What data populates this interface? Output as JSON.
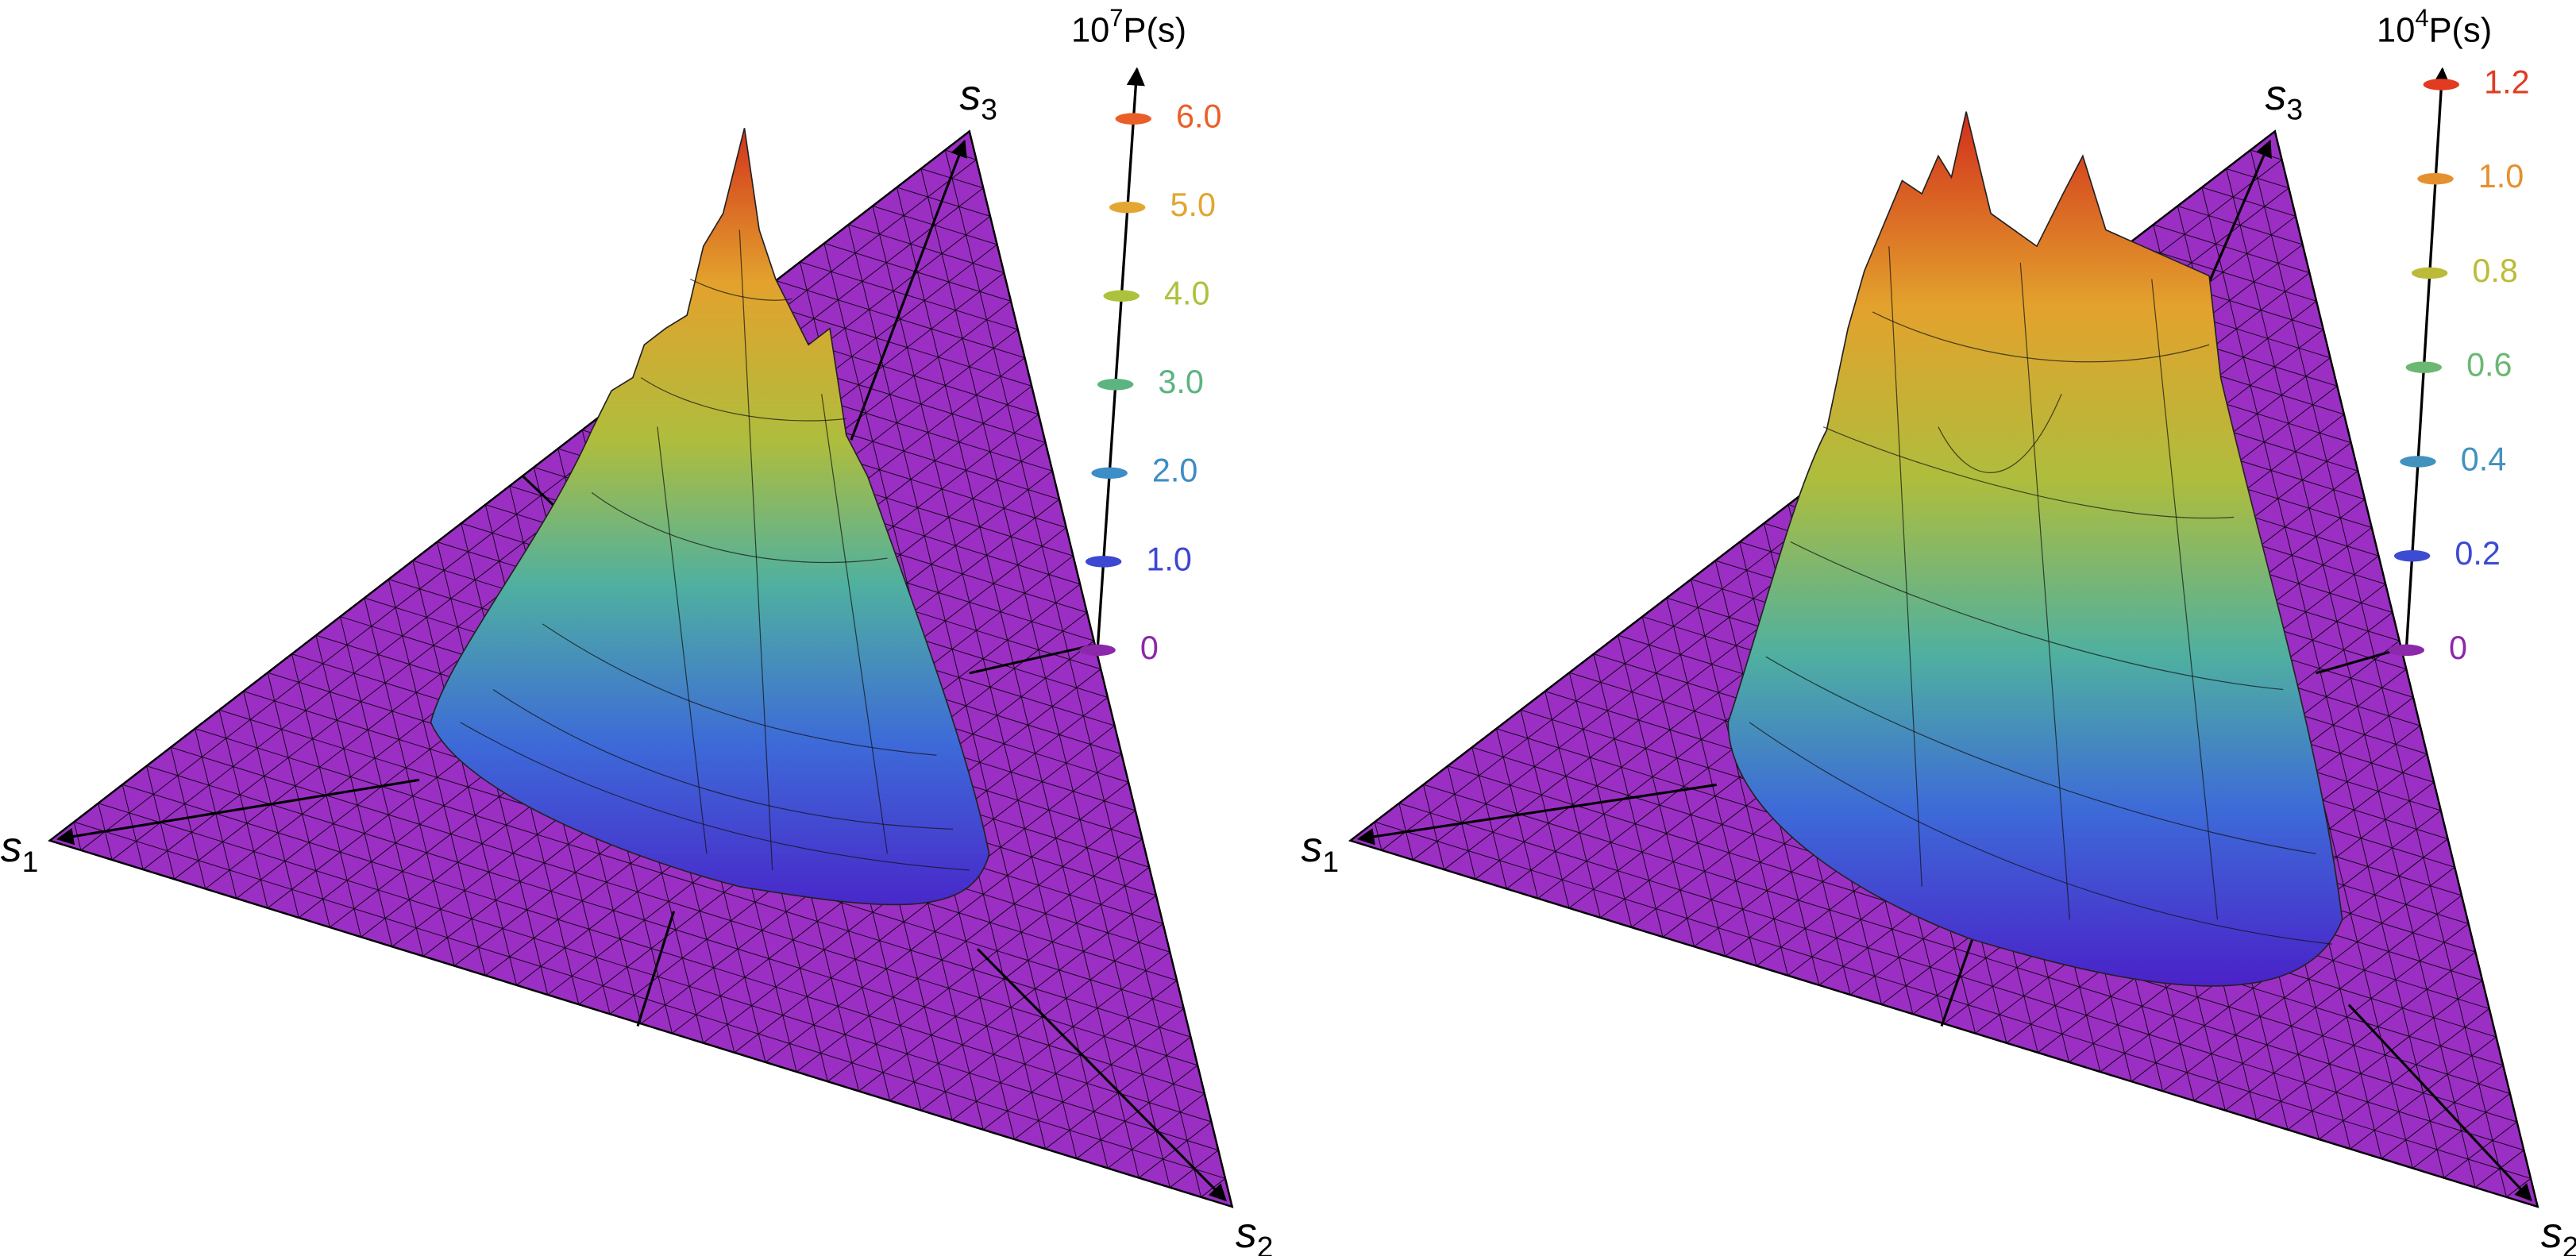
{
  "chart_data": [
    {
      "type": "surface3d",
      "vertex_labels": [
        {
          "text": "s",
          "sub": "1"
        },
        {
          "text": "s",
          "sub": "2"
        },
        {
          "text": "s",
          "sub": "3"
        }
      ],
      "zlabel": {
        "scale": "10",
        "exponent": "7",
        "text": "P(s)"
      },
      "zlim": [
        0,
        6.6
      ],
      "zticks": [
        0,
        {
          "value": 1,
          "label": "1.0"
        },
        {
          "value": 2,
          "label": "2.0"
        },
        {
          "value": 3,
          "label": "3.0"
        },
        {
          "value": 4,
          "label": "4.0"
        },
        {
          "value": 5,
          "label": "5.0"
        },
        {
          "value": 6,
          "label": "6.0"
        }
      ],
      "color": "#9b2fc4"
    },
    {
      "type": "surface3d",
      "vertex_labels": [
        {
          "text": "s",
          "sub": "1"
        },
        {
          "text": "s",
          "sub": "2"
        },
        {
          "text": "s",
          "sub": "3"
        }
      ],
      "zlabel": {
        "scale": "10",
        "exponent": "4",
        "text": "P(s)"
      },
      "zlim": [
        0,
        1.24
      ],
      "zticks": [
        0,
        0.2,
        0.4,
        0.6,
        0.8,
        {
          "value": 1,
          "label": "1.0"
        },
        1.2
      ],
      "color": "#9b2fc4"
    }
  ]
}
